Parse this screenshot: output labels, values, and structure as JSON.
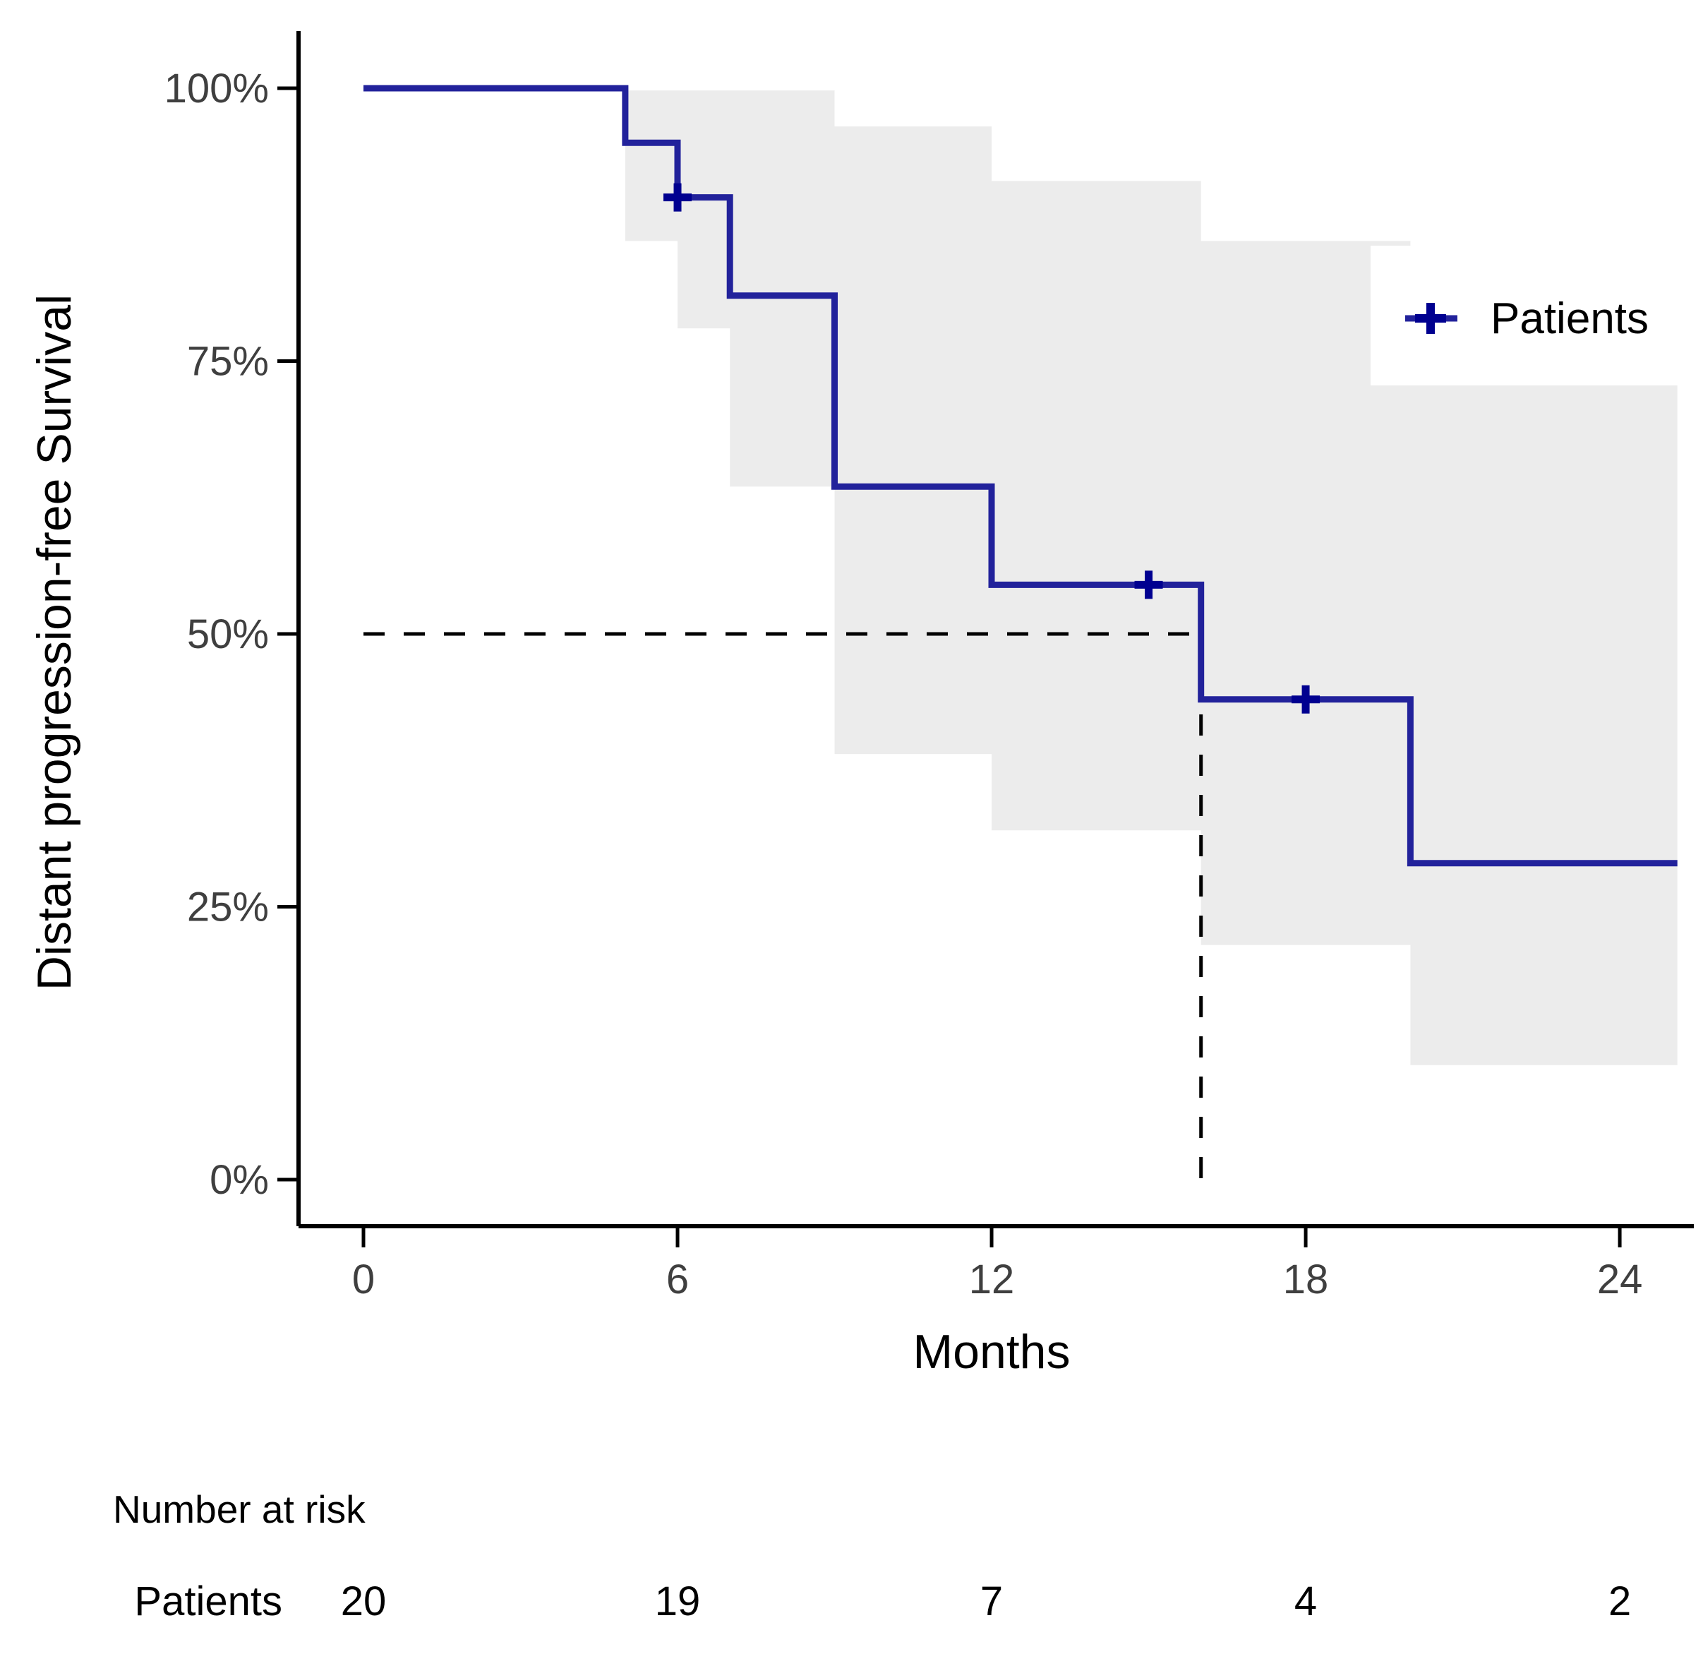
{
  "chart_data": {
    "type": "line",
    "subtype": "kaplan-meier-step",
    "title": "",
    "xlabel": "Months",
    "ylabel": "Distant progression-free Survival",
    "xlim": [
      0,
      25.3
    ],
    "ylim": [
      0,
      100
    ],
    "grid": false,
    "x_ticks": [
      {
        "value": 0,
        "label": "0"
      },
      {
        "value": 6,
        "label": "6"
      },
      {
        "value": 12,
        "label": "12"
      },
      {
        "value": 18,
        "label": "18"
      },
      {
        "value": 24,
        "label": "24"
      }
    ],
    "y_ticks": [
      {
        "value": 100,
        "label": "100%"
      },
      {
        "value": 75,
        "label": "75%"
      },
      {
        "value": 50,
        "label": "50%"
      },
      {
        "value": 25,
        "label": "25%"
      },
      {
        "value": 0,
        "label": "0%"
      }
    ],
    "legend": {
      "label": "Patients",
      "position": "right"
    },
    "series": [
      {
        "name": "Patients",
        "step_points": [
          {
            "t": 0,
            "s": 100
          },
          {
            "t": 5,
            "s": 95
          },
          {
            "t": 6,
            "s": 90
          },
          {
            "t": 7,
            "s": 81
          },
          {
            "t": 9,
            "s": 63.5
          },
          {
            "t": 12,
            "s": 54.5
          },
          {
            "t": 16,
            "s": 44
          },
          {
            "t": 20,
            "s": 29
          }
        ],
        "end_time": 25.1,
        "censor_marks": [
          {
            "t": 6,
            "s": 90
          },
          {
            "t": 15,
            "s": 54.5
          },
          {
            "t": 18,
            "s": 44
          }
        ],
        "confidence_band": [
          {
            "t0": 5,
            "t1": 6,
            "lo": 86,
            "hi": 99.8
          },
          {
            "t0": 6,
            "t1": 7,
            "lo": 78,
            "hi": 99.8
          },
          {
            "t0": 7,
            "t1": 9,
            "lo": 63.5,
            "hi": 99.8
          },
          {
            "t0": 9,
            "t1": 12,
            "lo": 39,
            "hi": 96.5
          },
          {
            "t0": 12,
            "t1": 16,
            "lo": 32,
            "hi": 91.5
          },
          {
            "t0": 16,
            "t1": 20,
            "lo": 21.5,
            "hi": 86
          },
          {
            "t0": 20,
            "t1": 25.1,
            "lo": 10.5,
            "hi": 73.5
          }
        ]
      }
    ],
    "median_line": {
      "survival_pct": 50,
      "time_months": 16,
      "style": "dashed"
    },
    "risk_table": {
      "title": "Number at risk",
      "time_points": [
        0,
        6,
        12,
        18,
        24
      ],
      "rows": [
        {
          "label": "Patients",
          "values": [
            "20",
            "19",
            "7",
            "4",
            "2"
          ]
        }
      ]
    },
    "colors": {
      "line": "#22229B",
      "marker": "#000090",
      "band": "#ECECEC",
      "dashed": "#000000",
      "axis": "#000000",
      "tick_text": "#3F3F3F",
      "title_text": "#000000",
      "legend_bg": "#FFFFFF"
    }
  }
}
